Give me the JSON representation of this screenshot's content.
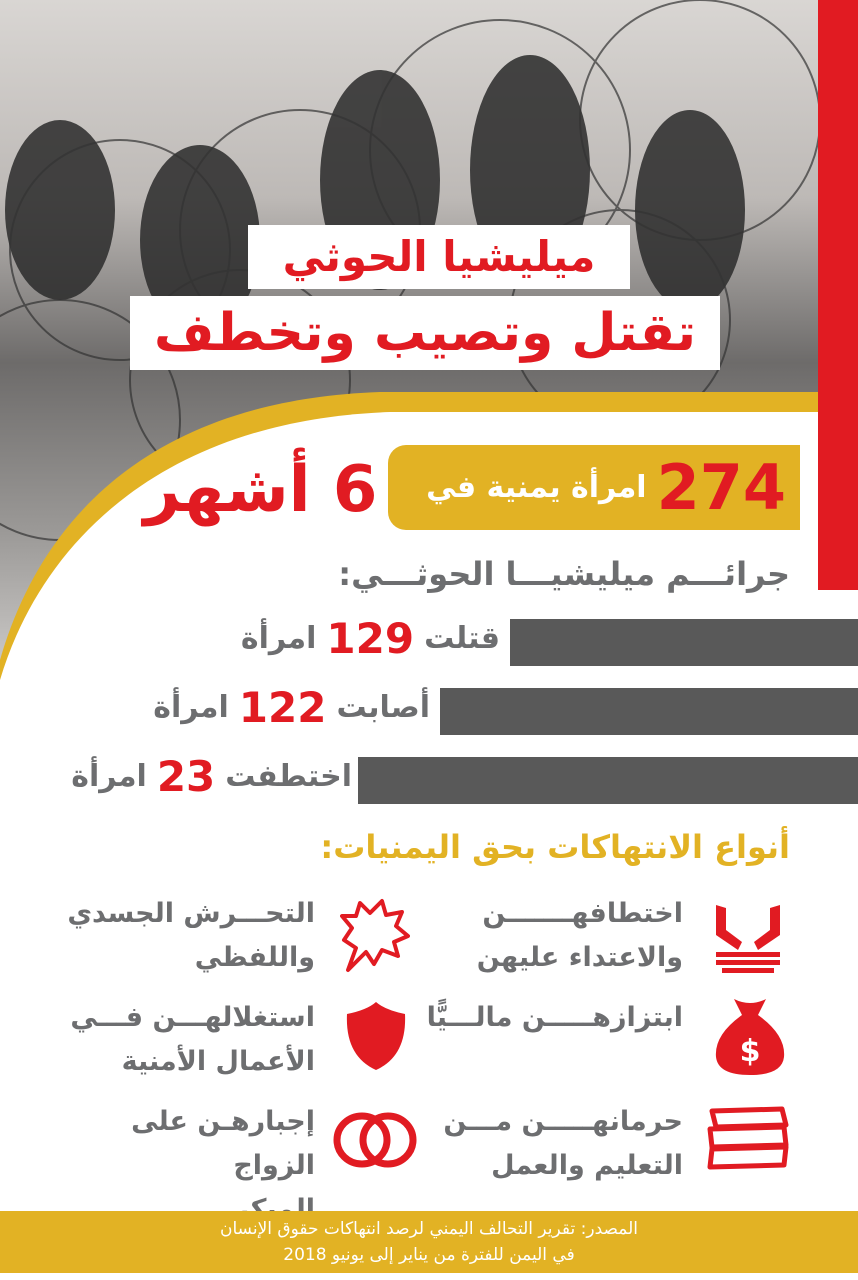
{
  "title": {
    "line1": "ميليشيا الحوثي",
    "line2": "تقتل وتصيب وتخطف"
  },
  "headline": {
    "count": "274",
    "text": "امرأة يمنية في",
    "period": "6 أشهر"
  },
  "crimes": {
    "heading": "جرائـــم ميليشيـــا الحوثـــي:",
    "items": [
      {
        "verb": "قتلت",
        "value": "129",
        "unit": "امرأة"
      },
      {
        "verb": "أصابت",
        "value": "122",
        "unit": "امرأة"
      },
      {
        "verb": "اختطفت",
        "value": "23",
        "unit": "امرأة"
      }
    ]
  },
  "violations": {
    "heading": "أنواع الانتهاكات بحق اليمنيات:",
    "items": [
      {
        "icon": "handcuffed-hands-icon",
        "line1": "اختطافهـــــــن",
        "line2": "والاعتداء عليهن"
      },
      {
        "icon": "shout-bubble-icon",
        "line1": "التحـــرش الجسدي",
        "line2": "واللفظي"
      },
      {
        "icon": "money-bag-icon",
        "line1": "ابتزازهـــــن مالـــيًّا",
        "line2": ""
      },
      {
        "icon": "shield-icon",
        "line1": "استغلالهـــن فـــي",
        "line2": "الأعمال الأمنية"
      },
      {
        "icon": "books-icon",
        "line1": "حرمانهـــــن مـــن",
        "line2": "التعليم والعمل"
      },
      {
        "icon": "rings-icon",
        "line1": "إجبارهـن على الزواج",
        "line2": "المبكر"
      }
    ]
  },
  "footer": {
    "line1": "المصدر: تقرير التحالف اليمني لرصد انتهاكات حقوق الإنسان",
    "line2": "في اليمن للفترة من يناير إلى يونيو 2018"
  },
  "colors": {
    "red": "#e11b22",
    "yellow": "#e2b224",
    "gray": "#6d6e70",
    "bar": "#595959"
  }
}
